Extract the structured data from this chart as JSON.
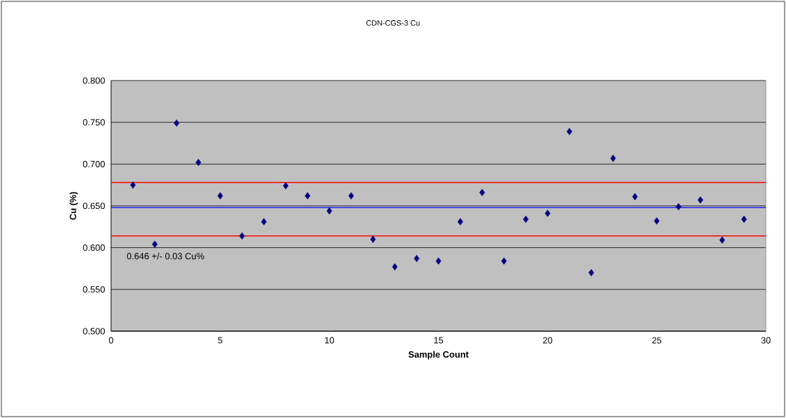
{
  "chart_data": {
    "type": "scatter",
    "title": "CDN-CGS-3 Cu",
    "xlabel": "Sample Count",
    "ylabel": "Cu (%)",
    "x": [
      1,
      2,
      3,
      4,
      5,
      6,
      7,
      8,
      9,
      10,
      11,
      12,
      13,
      14,
      15,
      16,
      17,
      18,
      19,
      20,
      21,
      22,
      23,
      24,
      25,
      26,
      27,
      28,
      29
    ],
    "series": [
      {
        "color": "#000080",
        "values": [
          0.675,
          0.604,
          0.749,
          0.702,
          0.662,
          0.614,
          0.631,
          0.674,
          0.662,
          0.644,
          0.662,
          0.61,
          0.577,
          0.587,
          0.584,
          0.631,
          0.666,
          0.584,
          0.634,
          0.641,
          0.739,
          0.57,
          0.707,
          0.661,
          0.632,
          0.649,
          0.657,
          0.609,
          0.634
        ]
      }
    ],
    "xlim": [
      0,
      30
    ],
    "xticks": [
      0,
      5,
      10,
      15,
      20,
      25,
      30
    ],
    "ylim": [
      0.5,
      0.8
    ],
    "yticks": [
      {
        "value": 0.5,
        "label": "0.500"
      },
      {
        "value": 0.55,
        "label": "0.550"
      },
      {
        "value": 0.6,
        "label": "0.600"
      },
      {
        "value": 0.65,
        "label": "0.650"
      },
      {
        "value": 0.7,
        "label": "0.700"
      },
      {
        "value": 0.75,
        "label": "0.750"
      },
      {
        "value": 0.8,
        "label": "0.800"
      }
    ],
    "ref_lines": [
      {
        "axis": "y",
        "value": 0.678,
        "color": "#ff0000"
      },
      {
        "axis": "y",
        "value": 0.648,
        "color": "#0000ff"
      },
      {
        "axis": "y",
        "value": 0.614,
        "color": "#ff0000"
      }
    ],
    "annotations": [
      "0.646 +/- 0.03 Cu%"
    ],
    "grid": "y",
    "marker": "diamond"
  }
}
